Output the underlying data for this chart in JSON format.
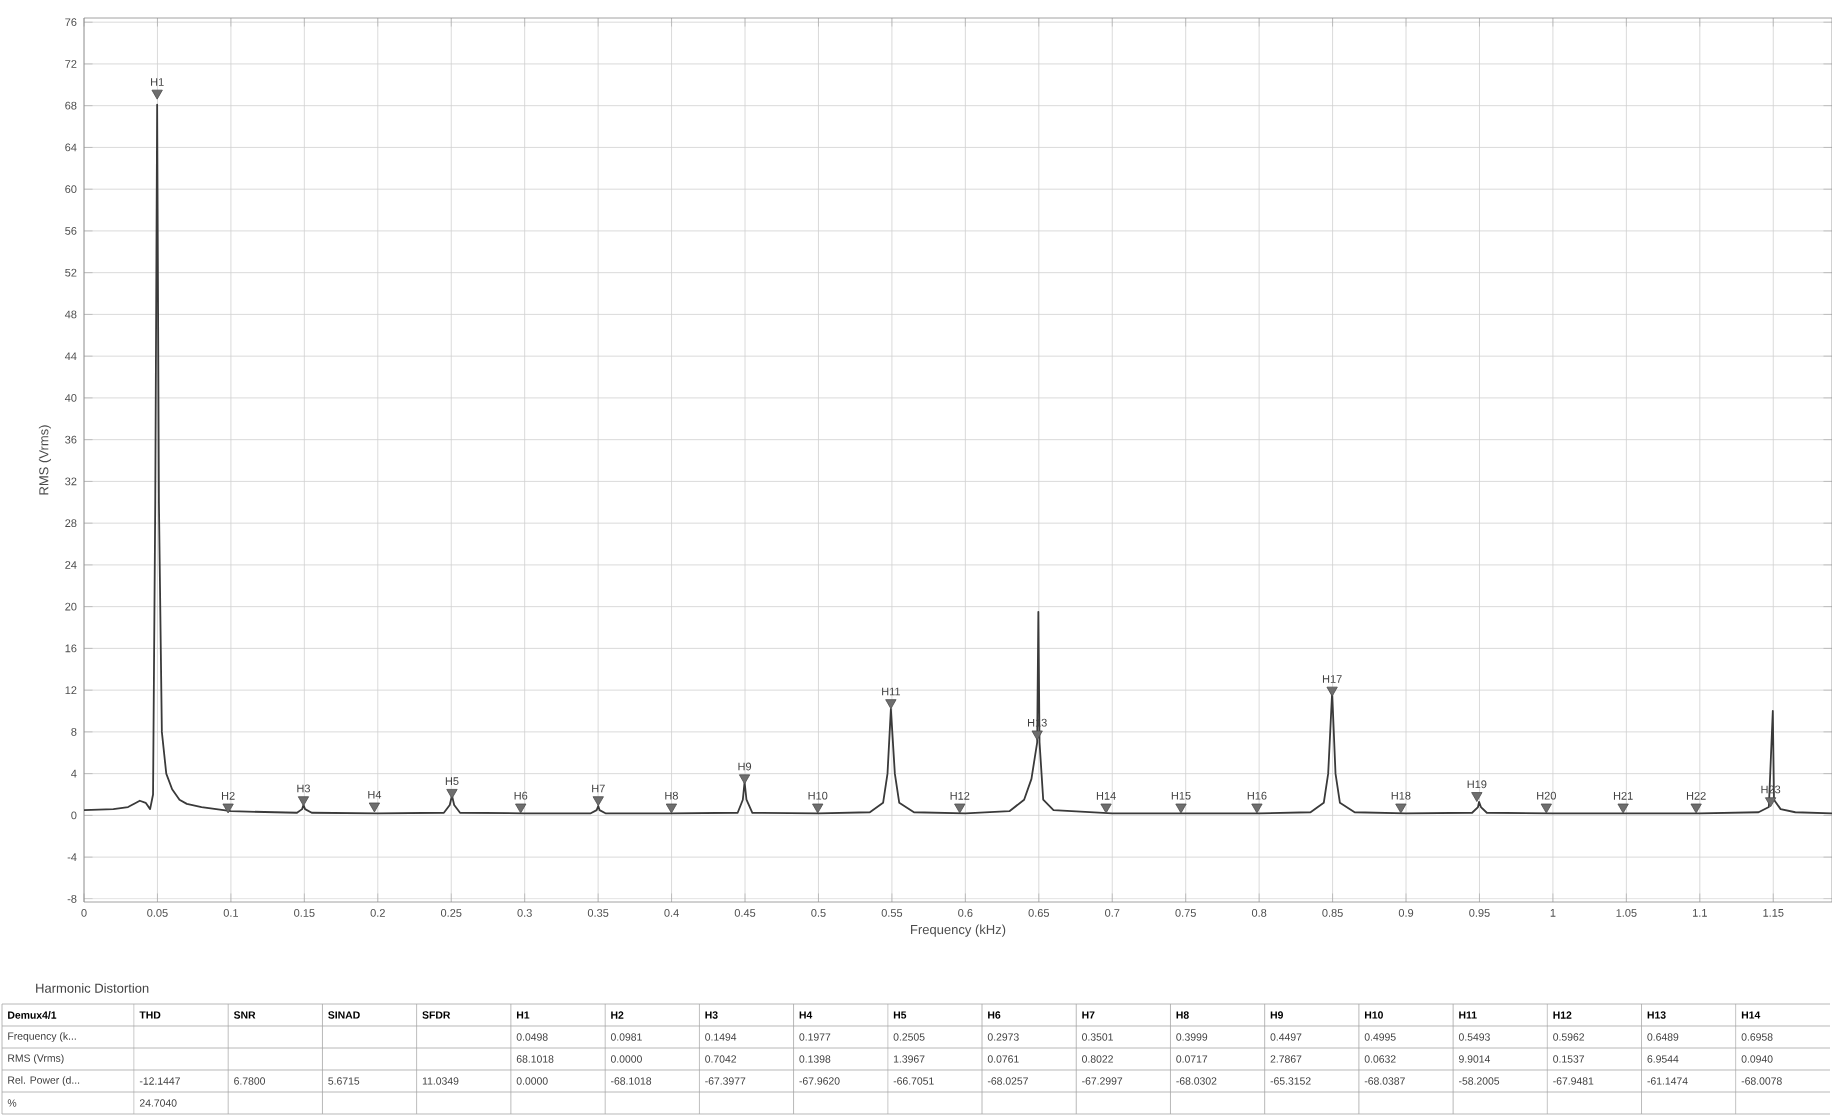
{
  "chart_data": [
    {
      "type": "line",
      "xlabel": "Frequency (kHz)",
      "ylabel": "RMS (Vrms)",
      "grid": true,
      "xlim": [
        0,
        1.19
      ],
      "ylim": [
        -8.3,
        76.4
      ],
      "xticks": [
        0,
        0.05,
        0.1,
        0.15,
        0.2,
        0.25,
        0.3,
        0.35,
        0.4,
        0.45,
        0.5,
        0.55,
        0.6,
        0.65,
        0.7,
        0.75,
        0.8,
        0.85,
        0.9,
        0.95,
        1,
        1.05,
        1.1,
        1.15
      ],
      "yticks": [
        -8,
        -4,
        0,
        4,
        8,
        12,
        16,
        20,
        24,
        28,
        32,
        36,
        40,
        44,
        48,
        52,
        56,
        60,
        64,
        68,
        72,
        76
      ],
      "series": [
        {
          "type": "line",
          "color": "#3a3a3a",
          "marker": "none",
          "line_style": "solid",
          "x": [
            0,
            0.02,
            0.03,
            0.038,
            0.042,
            0.045,
            0.047,
            0.0485,
            0.0498,
            0.051,
            0.053,
            0.056,
            0.06,
            0.065,
            0.07,
            0.08,
            0.1,
            0.13,
            0.145,
            0.1485,
            0.1494,
            0.1505,
            0.155,
            0.2,
            0.245,
            0.249,
            0.2505,
            0.252,
            0.256,
            0.3,
            0.345,
            0.349,
            0.3501,
            0.351,
            0.355,
            0.4,
            0.445,
            0.4485,
            0.4497,
            0.451,
            0.455,
            0.5,
            0.535,
            0.544,
            0.547,
            0.5493,
            0.552,
            0.555,
            0.565,
            0.6,
            0.63,
            0.64,
            0.645,
            0.6489,
            0.6497,
            0.6505,
            0.653,
            0.66,
            0.7,
            0.8,
            0.835,
            0.844,
            0.847,
            0.8497,
            0.852,
            0.855,
            0.865,
            0.9,
            0.945,
            0.949,
            0.9497,
            0.951,
            0.955,
            1.0,
            1.1,
            1.14,
            1.147,
            1.1497,
            1.1505,
            1.155,
            1.165,
            1.19
          ],
          "values": [
            0.5,
            0.6,
            0.8,
            1.4,
            1.2,
            0.6,
            2,
            30,
            68.1,
            30,
            8,
            4,
            2.5,
            1.5,
            1.1,
            0.8,
            0.4,
            0.3,
            0.25,
            0.6,
            1.0,
            0.6,
            0.25,
            0.2,
            0.25,
            1.0,
            1.9,
            1.0,
            0.25,
            0.2,
            0.2,
            0.5,
            0.9,
            0.5,
            0.2,
            0.2,
            0.25,
            1.5,
            3.2,
            1.5,
            0.25,
            0.2,
            0.3,
            1.2,
            4,
            10.2,
            4,
            1.2,
            0.3,
            0.2,
            0.4,
            1.5,
            3.5,
            7,
            19.5,
            7,
            1.5,
            0.5,
            0.2,
            0.2,
            0.3,
            1.2,
            4,
            11.8,
            4,
            1.2,
            0.3,
            0.2,
            0.25,
            0.8,
            1.3,
            0.8,
            0.25,
            0.2,
            0.2,
            0.3,
            0.8,
            10,
            1.5,
            0.6,
            0.3,
            0.2
          ]
        },
        {
          "type": "scatter",
          "color": "#6e6e6e",
          "marker": "triangle",
          "x": [
            0.0498,
            0.0981,
            0.1494,
            0.1977,
            0.2505,
            0.2973,
            0.3501,
            0.3999,
            0.4497,
            0.4995,
            0.5493,
            0.5962,
            0.6489,
            0.6958,
            0.7468,
            0.7985,
            0.8497,
            0.8965,
            0.9482,
            0.9955,
            1.0478,
            1.0975,
            1.1482
          ],
          "values": [
            69.2,
            0.8,
            1.5,
            0.9,
            2.2,
            0.8,
            1.5,
            0.8,
            3.6,
            0.8,
            10.8,
            0.8,
            7.8,
            0.8,
            0.8,
            0.8,
            12,
            0.8,
            1.9,
            0.8,
            0.8,
            0.8,
            1.4
          ]
        }
      ],
      "annotations": [
        {
          "text": "H1",
          "x": 0.0498,
          "y": 69.2
        },
        {
          "text": "H2",
          "x": 0.0981,
          "y": 0.8
        },
        {
          "text": "H3",
          "x": 0.1494,
          "y": 1.5
        },
        {
          "text": "H4",
          "x": 0.1977,
          "y": 0.9
        },
        {
          "text": "H5",
          "x": 0.2505,
          "y": 2.2
        },
        {
          "text": "H6",
          "x": 0.2973,
          "y": 0.8
        },
        {
          "text": "H7",
          "x": 0.3501,
          "y": 1.5
        },
        {
          "text": "H8",
          "x": 0.3999,
          "y": 0.8
        },
        {
          "text": "H9",
          "x": 0.4497,
          "y": 3.6
        },
        {
          "text": "H10",
          "x": 0.4995,
          "y": 0.8
        },
        {
          "text": "H11",
          "x": 0.5493,
          "y": 10.8
        },
        {
          "text": "H12",
          "x": 0.5962,
          "y": 0.8
        },
        {
          "text": "H13",
          "x": 0.6489,
          "y": 7.8
        },
        {
          "text": "H14",
          "x": 0.6958,
          "y": 0.8
        },
        {
          "text": "H15",
          "x": 0.7468,
          "y": 0.8
        },
        {
          "text": "H16",
          "x": 0.7985,
          "y": 0.8
        },
        {
          "text": "H17",
          "x": 0.8497,
          "y": 12
        },
        {
          "text": "H18",
          "x": 0.8965,
          "y": 0.8
        },
        {
          "text": "H19",
          "x": 0.9482,
          "y": 1.9
        },
        {
          "text": "H20",
          "x": 0.9955,
          "y": 0.8
        },
        {
          "text": "H21",
          "x": 1.0478,
          "y": 0.8
        },
        {
          "text": "H22",
          "x": 1.0975,
          "y": 0.8
        },
        {
          "text": "H23",
          "x": 1.1482,
          "y": 1.4
        }
      ]
    },
    {
      "type": "other",
      "title": "Harmonic Distortion",
      "categories": [
        "Demux4/1",
        "THD",
        "SNR",
        "SINAD",
        "SFDR",
        "H1",
        "H2",
        "H3",
        "H4",
        "H5",
        "H6",
        "H7",
        "H8",
        "H9",
        "H10",
        "H11",
        "H12",
        "H13",
        "H14"
      ],
      "y_categories": [
        "Frequency (k...",
        "RMS (Vrms)",
        "Rel. Power (d...",
        "%"
      ],
      "cell_labels": [
        [
          null,
          null,
          null,
          null,
          "0.0498",
          "0.0981",
          "0.1494",
          "0.1977",
          "0.2505",
          "0.2973",
          "0.3501",
          "0.3999",
          "0.4497",
          "0.4995",
          "0.5493",
          "0.5962",
          "0.6489",
          "0.6958"
        ],
        [
          null,
          null,
          null,
          null,
          "68.1018",
          "0.0000",
          "0.7042",
          "0.1398",
          "1.3967",
          "0.0761",
          "0.8022",
          "0.0717",
          "2.7867",
          "0.0632",
          "9.9014",
          "0.1537",
          "6.9544",
          "0.0940"
        ],
        [
          "-12.1447",
          "6.7800",
          "5.6715",
          "11.0349",
          "0.0000",
          "-68.1018",
          "-67.3977",
          "-67.9620",
          "-66.7051",
          "-68.0257",
          "-67.2997",
          "-68.0302",
          "-65.3152",
          "-68.0387",
          "-58.2005",
          "-67.9481",
          "-61.1474",
          "-68.0078"
        ],
        [
          "24.7040",
          null,
          null,
          null,
          null,
          null,
          null,
          null,
          null,
          null,
          null,
          null,
          null,
          null,
          null,
          null,
          null,
          null
        ]
      ]
    }
  ]
}
